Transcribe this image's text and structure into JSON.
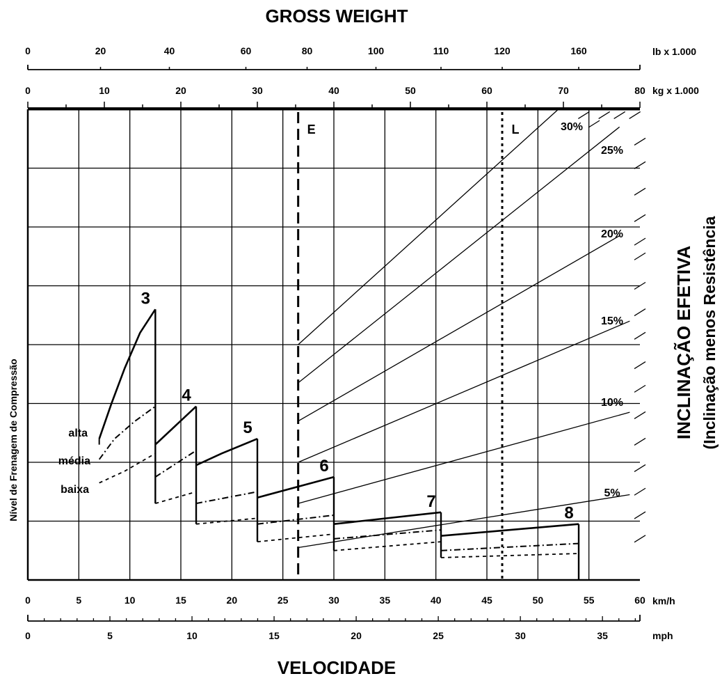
{
  "colors": {
    "ink": "#000000",
    "background": "#ffffff"
  },
  "chart_data": {
    "type": "line",
    "title": "GROSS WEIGHT",
    "xlabel": "VELOCIDADE",
    "ylabel": "Nível de Frenagem de Compressão",
    "right_title": "INCLINAÇÃO EFETIVA",
    "right_subtitle": "(Inclinação menos Resistência",
    "grid": true,
    "axes": {
      "kmh": {
        "unit": "km/h",
        "range": [
          0,
          60
        ],
        "ticks": [
          0,
          5,
          10,
          15,
          20,
          25,
          30,
          35,
          40,
          45,
          50,
          55,
          60
        ]
      },
      "mph": {
        "unit": "mph",
        "ticks": [
          0,
          5,
          10,
          15,
          20,
          25,
          30,
          35
        ]
      },
      "kg": {
        "unit": "kg x 1.000",
        "range": [
          0,
          80
        ],
        "ticks": [
          0,
          10,
          20,
          30,
          40,
          50,
          60,
          70,
          80
        ]
      },
      "lb": {
        "unit": "lb x 1.000",
        "labels": [
          "0",
          "20",
          "40",
          "60",
          "80",
          "100",
          "110",
          "120",
          "160"
        ],
        "label_kg": [
          0,
          9.5,
          18.5,
          28.5,
          36.5,
          45.5,
          54,
          62,
          72
        ]
      },
      "y_level": {
        "range": [
          0,
          8
        ]
      }
    },
    "verticals": [
      {
        "label": "E",
        "kmh": 26.5,
        "style": "dashed"
      },
      {
        "label": "L",
        "kmh": 46.5,
        "style": "dotted"
      }
    ],
    "levels": [
      "alta",
      "média",
      "baixa"
    ],
    "gears": [
      {
        "label": "3",
        "start_kmh": 7,
        "end_kmh": 12.5,
        "alta": [
          [
            7,
            2.4
          ],
          [
            8.2,
            3.0
          ],
          [
            9.5,
            3.6
          ],
          [
            11,
            4.2
          ],
          [
            12.5,
            4.6
          ]
        ],
        "media": [
          [
            7,
            2.05
          ],
          [
            8.5,
            2.4
          ],
          [
            10.5,
            2.7
          ],
          [
            12.5,
            2.95
          ]
        ],
        "baixa": [
          [
            7,
            1.65
          ],
          [
            9.5,
            1.85
          ],
          [
            12.5,
            2.15
          ]
        ]
      },
      {
        "label": "4",
        "start_kmh": 12.5,
        "end_kmh": 16.5,
        "alta": [
          [
            12.5,
            2.3
          ],
          [
            16.5,
            2.95
          ]
        ],
        "media": [
          [
            12.5,
            1.75
          ],
          [
            16.5,
            2.2
          ]
        ],
        "baixa": [
          [
            12.5,
            1.3
          ],
          [
            16.5,
            1.5
          ]
        ]
      },
      {
        "label": "5",
        "start_kmh": 16.5,
        "end_kmh": 22.5,
        "alta": [
          [
            16.5,
            1.95
          ],
          [
            19,
            2.15
          ],
          [
            22.5,
            2.4
          ]
        ],
        "media": [
          [
            16.5,
            1.3
          ],
          [
            22.5,
            1.5
          ]
        ],
        "baixa": [
          [
            16.5,
            0.95
          ],
          [
            22.5,
            1.05
          ]
        ]
      },
      {
        "label": "6",
        "start_kmh": 22.5,
        "end_kmh": 30,
        "alta": [
          [
            22.5,
            1.4
          ],
          [
            30,
            1.75
          ]
        ],
        "media": [
          [
            22.5,
            0.95
          ],
          [
            30,
            1.1
          ]
        ],
        "baixa": [
          [
            22.5,
            0.65
          ],
          [
            30,
            0.78
          ]
        ]
      },
      {
        "label": "7",
        "start_kmh": 30,
        "end_kmh": 40.5,
        "alta": [
          [
            30,
            0.95
          ],
          [
            40.5,
            1.15
          ]
        ],
        "media": [
          [
            30,
            0.7
          ],
          [
            40.5,
            0.85
          ]
        ],
        "baixa": [
          [
            30,
            0.5
          ],
          [
            40.5,
            0.65
          ]
        ]
      },
      {
        "label": "8",
        "start_kmh": 40.5,
        "end_kmh": 54,
        "alta": [
          [
            40.5,
            0.75
          ],
          [
            54,
            0.95
          ]
        ],
        "media": [
          [
            40.5,
            0.5
          ],
          [
            54,
            0.62
          ]
        ],
        "baixa": [
          [
            40.5,
            0.38
          ],
          [
            54,
            0.45
          ]
        ]
      }
    ],
    "grades": [
      {
        "label": "30%",
        "from": [
          26.5,
          4.0
        ],
        "to": [
          52,
          8.0
        ]
      },
      {
        "label": "25%",
        "from": [
          26.5,
          3.35
        ],
        "to": [
          58,
          7.7
        ]
      },
      {
        "label": "20%",
        "from": [
          26.5,
          2.7
        ],
        "to": [
          58,
          5.85
        ]
      },
      {
        "label": "15%",
        "from": [
          26.5,
          2.0
        ],
        "to": [
          59,
          4.4
        ]
      },
      {
        "label": "10%",
        "from": [
          26.5,
          1.3
        ],
        "to": [
          59,
          2.85
        ]
      },
      {
        "label": "5%",
        "from": [
          26.5,
          0.55
        ],
        "to": [
          59,
          1.45
        ]
      }
    ],
    "grade_ticks": [
      [
        54.5,
        7.9
      ],
      [
        55.5,
        7.75
      ],
      [
        56.5,
        7.9
      ],
      [
        58,
        7.9
      ],
      [
        59.5,
        7.9
      ],
      [
        60,
        7.45
      ],
      [
        60,
        7.05
      ],
      [
        60,
        6.6
      ],
      [
        60,
        6.15
      ],
      [
        60,
        5.75
      ],
      [
        60,
        5.5
      ],
      [
        60,
        5.0
      ],
      [
        60,
        4.55
      ],
      [
        60,
        4.15
      ],
      [
        60,
        3.65
      ],
      [
        60,
        3.25
      ],
      [
        60,
        2.8
      ],
      [
        60,
        2.35
      ],
      [
        60,
        1.9
      ],
      [
        60,
        1.5
      ],
      [
        60,
        1.1
      ],
      [
        60,
        0.7
      ]
    ]
  }
}
